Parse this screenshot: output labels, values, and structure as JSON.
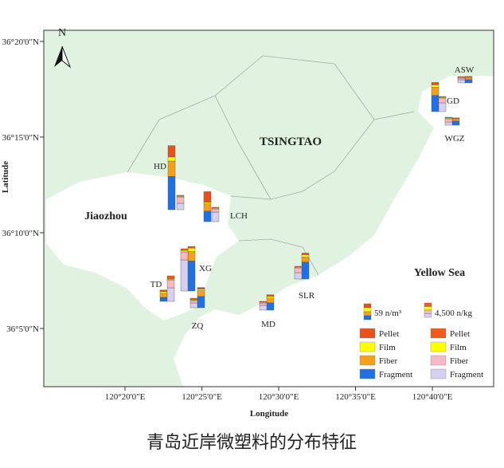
{
  "title": "青岛近岸微塑料的分布特征",
  "map": {
    "north": "N",
    "place_labels": [
      "TSINGTAO",
      "Jiaozhou",
      "Yellow Sea"
    ],
    "x_axis_label": "Longitude",
    "y_axis_label": "Latitude",
    "lon_ticks": [
      {
        "value": 120.3333,
        "label": "120°20'0\"E"
      },
      {
        "value": 120.4167,
        "label": "120°25'0\"E"
      },
      {
        "value": 120.5,
        "label": "120°30'0\"E"
      },
      {
        "value": 120.5833,
        "label": "120°35'0\"E"
      },
      {
        "value": 120.6667,
        "label": "120°40'0\"E"
      }
    ],
    "lat_ticks": [
      {
        "value": 36.3333,
        "label": "36°20'0\"N"
      },
      {
        "value": 36.25,
        "label": "36°15'0\"N"
      },
      {
        "value": 36.1667,
        "label": "36°10'0\"N"
      },
      {
        "value": 36.0833,
        "label": "36°5'0\"N"
      }
    ]
  },
  "chart_data": {
    "type": "map-bars",
    "sites": [
      "HD",
      "LCH",
      "XG",
      "TD",
      "ZQ",
      "MD",
      "SLR",
      "GD",
      "WGZ",
      "ASW"
    ],
    "water": {
      "scale": {
        "value": 59,
        "label": "59 n/m³"
      },
      "series": [
        {
          "name": "Pellet",
          "color": "#e8501c",
          "values": [
            42,
            39,
            6,
            6,
            6,
            6,
            6,
            9,
            3,
            3
          ]
        },
        {
          "name": "Film",
          "color": "#ffff00",
          "values": [
            15,
            6,
            12,
            6,
            6,
            6,
            9,
            9,
            3,
            3
          ]
        },
        {
          "name": "Fiber",
          "color": "#f5a01a",
          "values": [
            57,
            27,
            36,
            15,
            21,
            18,
            18,
            30,
            6,
            6
          ]
        },
        {
          "name": "Fragment",
          "color": "#1f6fe5",
          "values": [
            123,
            39,
            111,
            15,
            42,
            27,
            63,
            60,
            15,
            12
          ]
        }
      ]
    },
    "sediment": {
      "scale": {
        "value": 4500,
        "label": "4,500 n/kg"
      },
      "series": [
        {
          "name": "Pellet",
          "color": "#f05a1a",
          "values": [
            250,
            250,
            500,
            1000,
            500,
            250,
            250,
            250,
            250,
            250
          ]
        },
        {
          "name": "Film",
          "color": "#ffff00",
          "values": [
            250,
            250,
            500,
            250,
            250,
            250,
            250,
            250,
            250,
            250
          ]
        },
        {
          "name": "Fiber",
          "color": "#f6b8c3",
          "values": [
            2000,
            1000,
            2500,
            2500,
            750,
            750,
            1500,
            1500,
            1000,
            500
          ]
        },
        {
          "name": "Fragment",
          "color": "#d5cff0",
          "values": [
            2000,
            3000,
            9750,
            4250,
            1500,
            1500,
            2000,
            2750,
            1000,
            1000
          ]
        }
      ]
    }
  }
}
